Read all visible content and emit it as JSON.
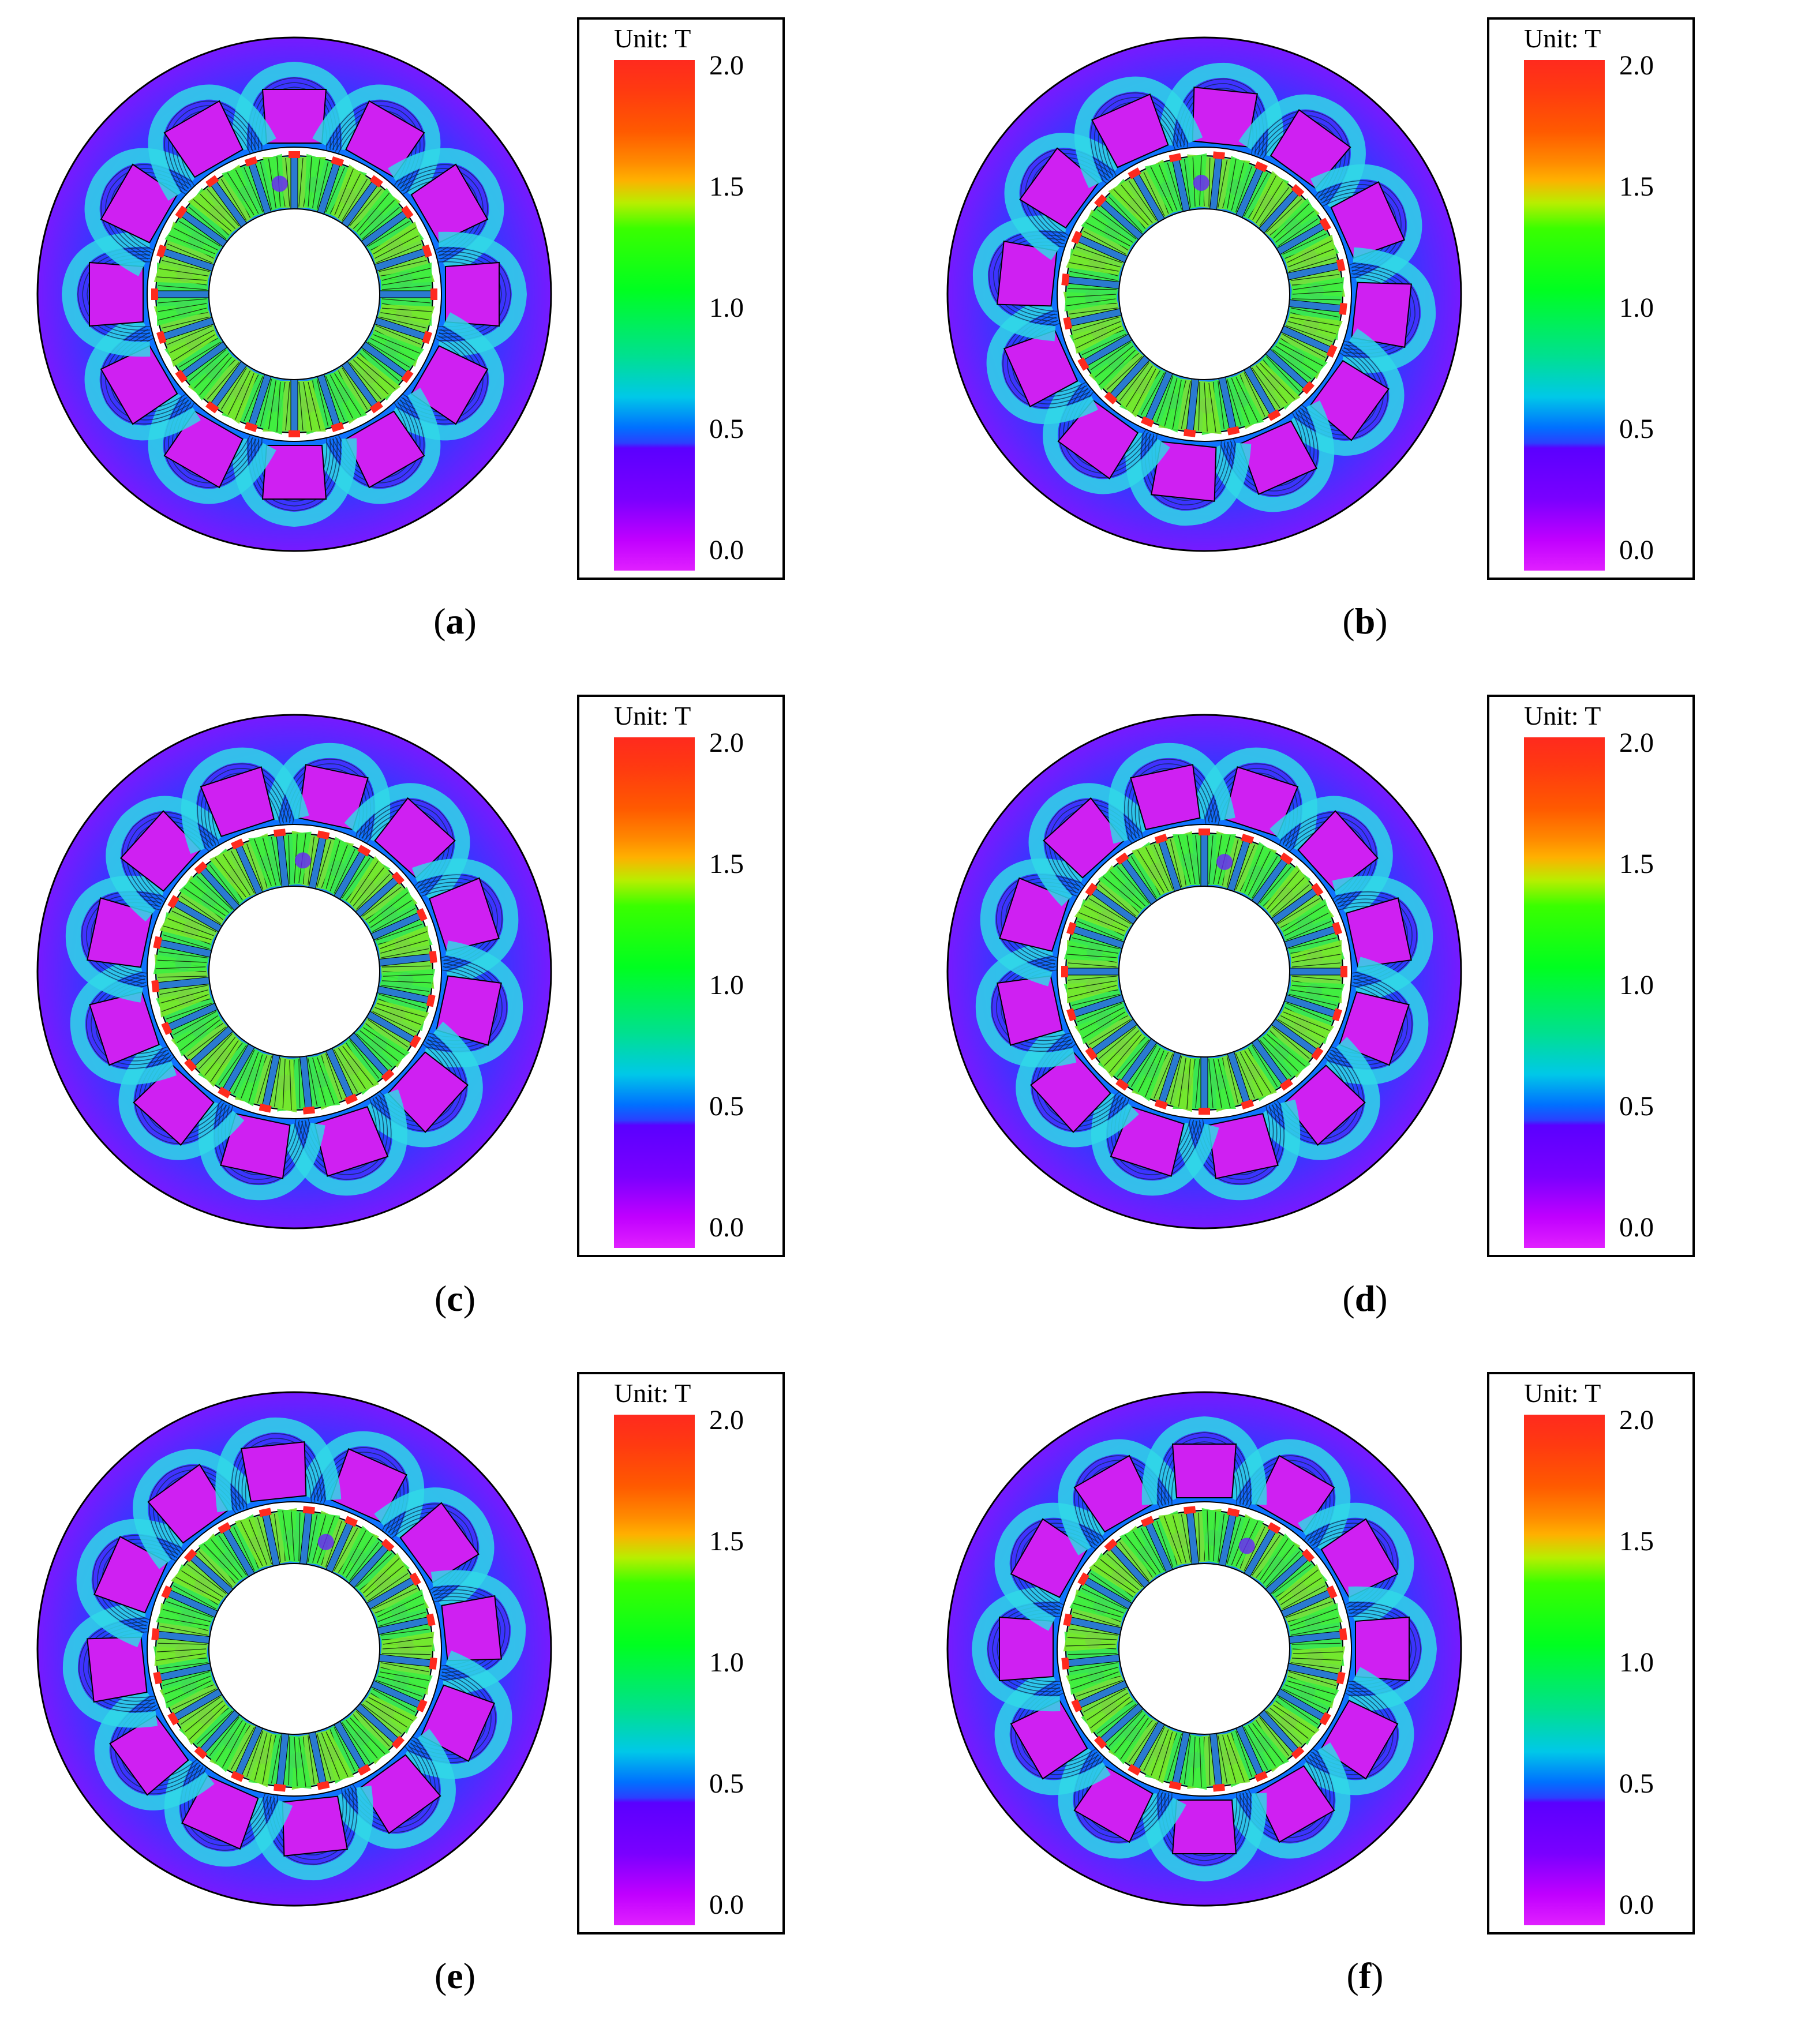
{
  "legend": {
    "unit": "Unit: T",
    "ticks": [
      "2.0",
      "1.5",
      "1.0",
      "0.5",
      "0.0"
    ]
  },
  "colors": {
    "high": "#ff2a1e",
    "mid": "#00ff20",
    "low": "#e020ff",
    "outline": "#000000"
  },
  "panels": [
    {
      "id": "a",
      "label": "a"
    },
    {
      "id": "b",
      "label": "b"
    },
    {
      "id": "c",
      "label": "c"
    },
    {
      "id": "d",
      "label": "d"
    },
    {
      "id": "e",
      "label": "e"
    },
    {
      "id": "f",
      "label": "f"
    }
  ]
}
